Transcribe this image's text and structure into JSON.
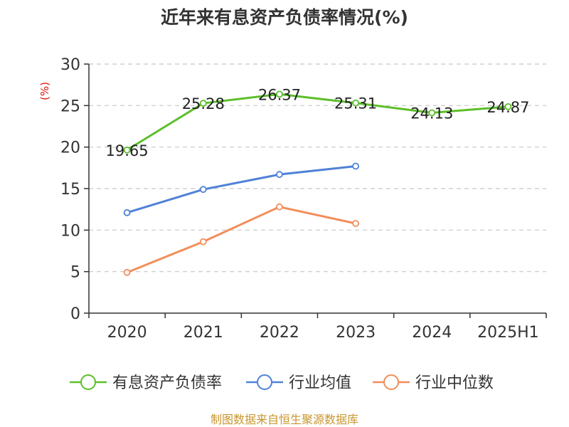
{
  "chart_data": {
    "type": "line",
    "title": "近年来有息资产负债率情况(%)",
    "ylabel": "(%)",
    "xlabel": "",
    "categories": [
      "2020",
      "2021",
      "2022",
      "2023",
      "2024",
      "2025H1"
    ],
    "ylim": [
      0,
      30
    ],
    "yticks": [
      0,
      5,
      10,
      15,
      20,
      25,
      30
    ],
    "grid": "horizontal dashed",
    "legend_position": "bottom",
    "series": [
      {
        "name": "有息资产负债率",
        "color": "#5cbf2a",
        "values": [
          19.65,
          25.28,
          26.37,
          25.31,
          24.13,
          24.87
        ],
        "labels": [
          "19.65",
          "25.28",
          "26.37",
          "25.31",
          "24.13",
          "24.87"
        ]
      },
      {
        "name": "行业均值",
        "color": "#4f81d8",
        "values": [
          12.1,
          14.9,
          16.7,
          17.7,
          null,
          null
        ]
      },
      {
        "name": "行业中位数",
        "color": "#f28e5b",
        "values": [
          4.9,
          8.6,
          12.8,
          10.8,
          null,
          null
        ]
      }
    ]
  },
  "source": "制图数据来自恒生聚源数据库"
}
